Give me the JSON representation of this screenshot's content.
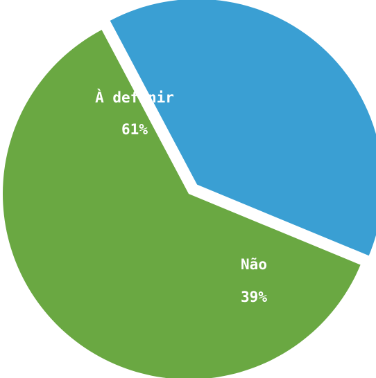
{
  "chart_data": {
    "type": "pie",
    "slices": [
      {
        "label": "À definir",
        "value": 61,
        "value_label": "61%",
        "color": "#6aa842"
      },
      {
        "label": "Não",
        "value": 39,
        "value_label": "39%",
        "color": "#3a9fd3"
      }
    ],
    "exploded": [
      "Não"
    ],
    "legend": "none"
  }
}
